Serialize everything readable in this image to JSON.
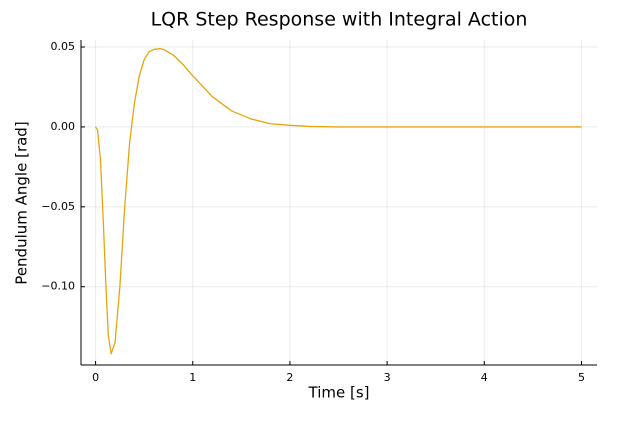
{
  "chart_data": {
    "type": "line",
    "title": "LQR Step Response with Integral Action",
    "x_label": "Time [s]",
    "y_label": "Pendulum Angle [rad]",
    "x": [
      0,
      0.02,
      0.05,
      0.08,
      0.1,
      0.13,
      0.16,
      0.2,
      0.25,
      0.3,
      0.35,
      0.4,
      0.45,
      0.5,
      0.55,
      0.6,
      0.66,
      0.7,
      0.8,
      0.9,
      1.0,
      1.2,
      1.4,
      1.6,
      1.8,
      2.0,
      2.2,
      2.5,
      3,
      4,
      5
    ],
    "series": [
      {
        "color": "#e6a50f",
        "values": [
          0,
          -0.002,
          -0.02,
          -0.06,
          -0.09,
          -0.13,
          -0.142,
          -0.135,
          -0.1,
          -0.05,
          -0.01,
          0.015,
          0.032,
          0.042,
          0.047,
          0.0485,
          0.049,
          0.0485,
          0.045,
          0.039,
          0.032,
          0.019,
          0.01,
          0.005,
          0.002,
          0.001,
          0.0003,
          0,
          0,
          0,
          0
        ]
      }
    ],
    "xlim": [
      -0.15,
      5.16
    ],
    "xticks": [
      0,
      1,
      2,
      3,
      4,
      5
    ],
    "ylim": [
      -0.149,
      0.0544
    ],
    "yticks": [
      {
        "value": 0.05,
        "label": "0.05"
      },
      {
        "value": 0,
        "label": "0.00"
      },
      {
        "value": -0.05,
        "label": "−0.05"
      },
      {
        "value": -0.1,
        "label": "−0.10"
      }
    ],
    "grid": true
  }
}
